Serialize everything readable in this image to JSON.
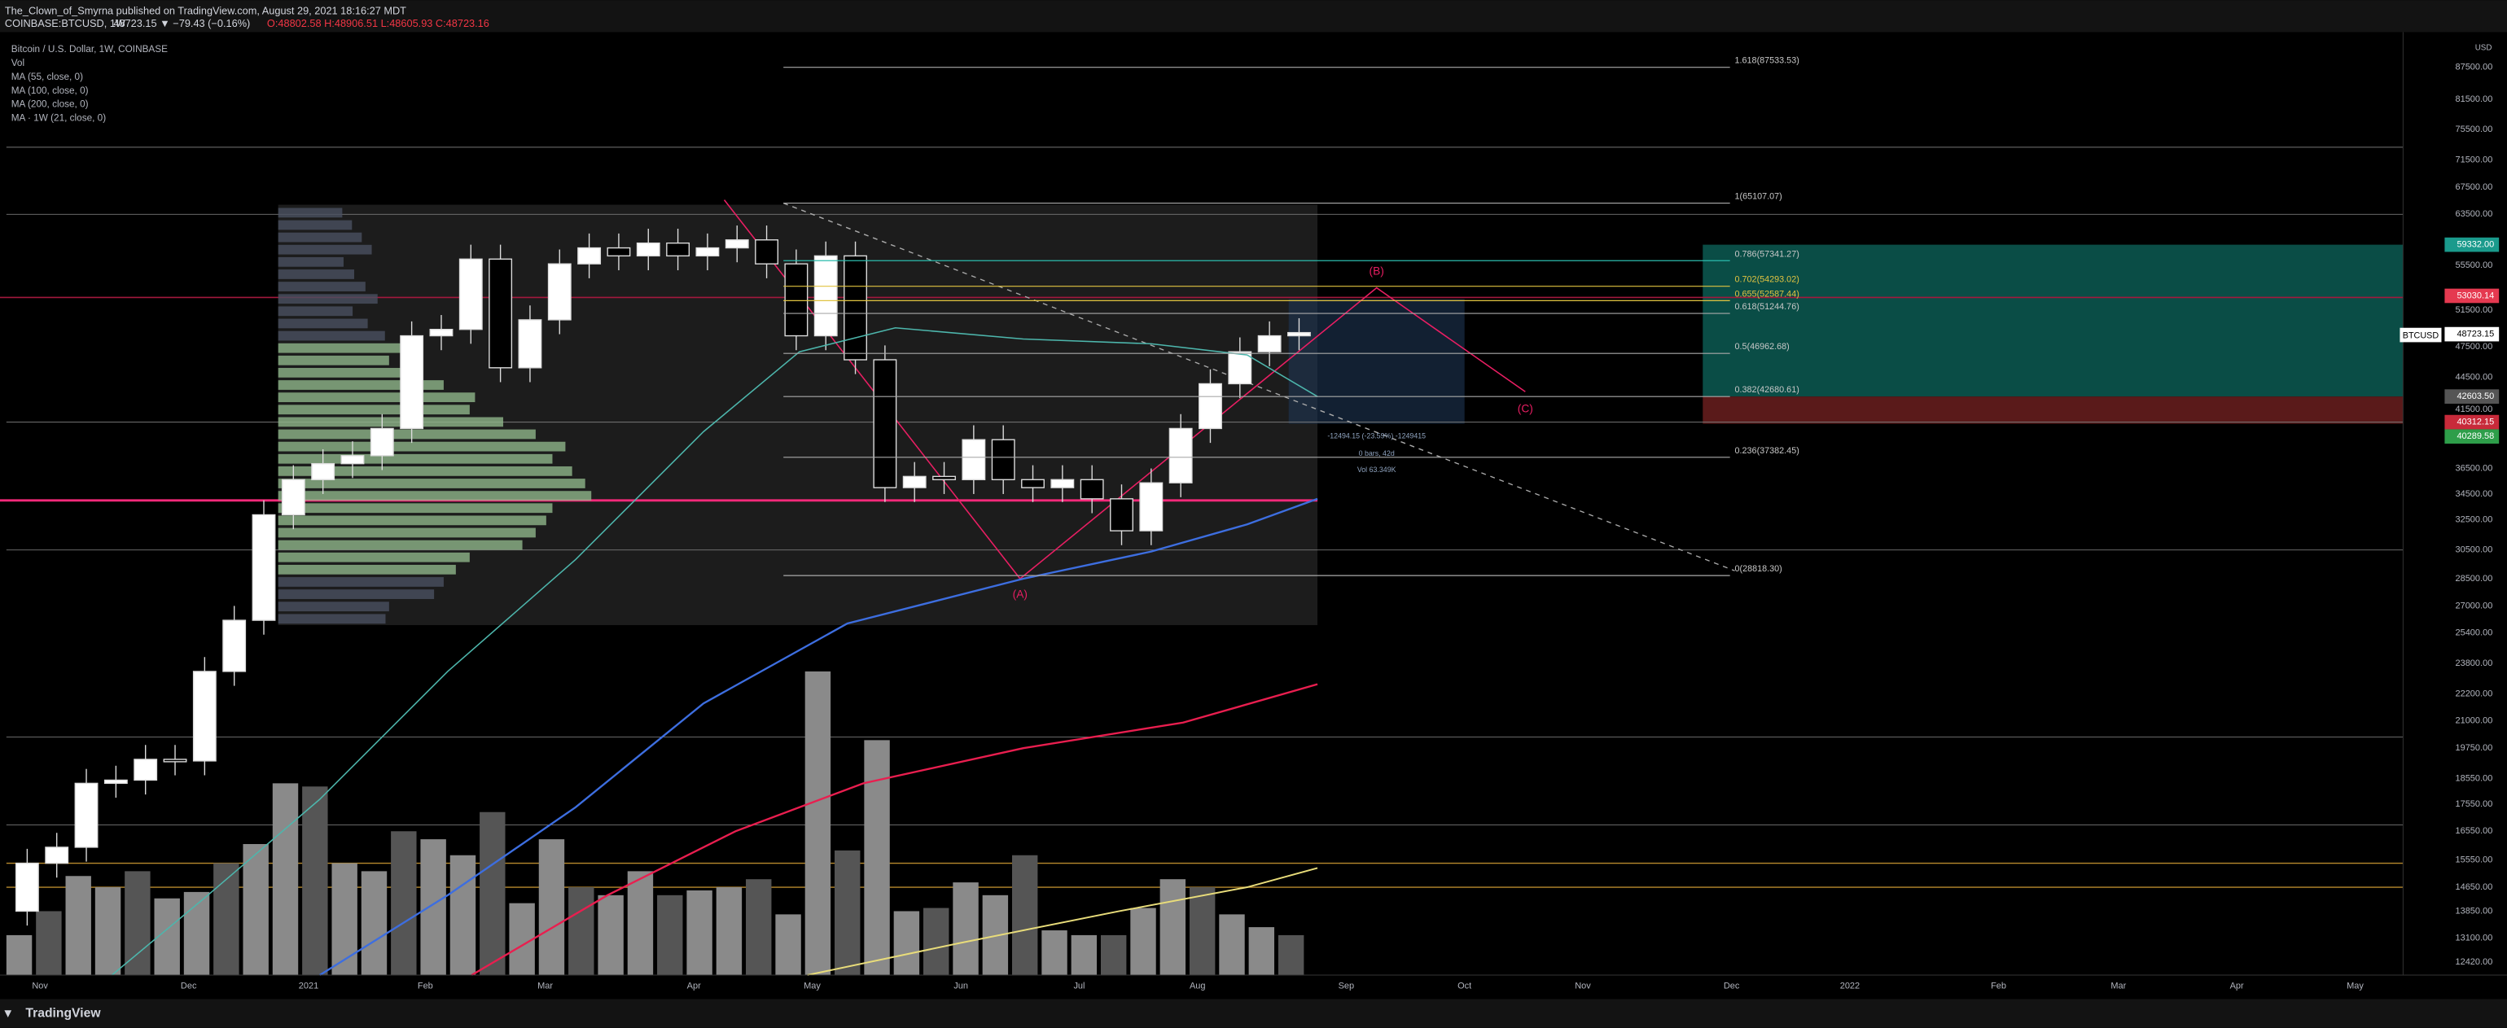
{
  "header": {
    "publisher": "The_Clown_of_Smyrna published on TradingView.com, August 29, 2021 18:16:27 MDT",
    "symbol": "COINBASE:BTCUSD, 1W",
    "last": "48723.15 ▼ −79.43 (−0.16%)",
    "ohlc": "O:48802.58 H:48906.51 L:48605.93 C:48723.16"
  },
  "legend": [
    "Bitcoin / U.S. Dollar, 1W, COINBASE",
    "Vol",
    "MA (55, close, 0)",
    "MA (100, close, 0)",
    "MA (200, close, 0)",
    "MA · 1W (21, close, 0)"
  ],
  "price_axis": {
    "currency": "USD",
    "labels": [
      "87500.00",
      "81500.00",
      "75500.00",
      "71500.00",
      "67500.00",
      "63500.00",
      "55500.00",
      "51500.00",
      "47500.00",
      "44500.00",
      "41500.00",
      "36500.00",
      "34500.00",
      "32500.00",
      "30500.00",
      "28500.00",
      "27000.00",
      "25400.00",
      "23800.00",
      "22200.00",
      "21000.00",
      "19750.00",
      "18550.00",
      "17550.00",
      "16550.00",
      "15550.00",
      "14650.00",
      "13850.00",
      "13100.00",
      "12420.00"
    ]
  },
  "price_badges": [
    "59332.00",
    "53030.14",
    "48723.15",
    "42603.50",
    "40312.15",
    "40289.58"
  ],
  "symbol_tag": "BTCUSD",
  "time_axis": [
    "Nov",
    "Dec",
    "2021",
    "Feb",
    "Mar",
    "Apr",
    "May",
    "Jun",
    "Jul",
    "Aug",
    "Sep",
    "Oct",
    "Nov",
    "Dec",
    "2022",
    "Feb",
    "Mar",
    "Apr",
    "May"
  ],
  "fib_levels": [
    "1.618(87533.53)",
    "1(65107.07)",
    "0.786(57341.27)",
    "0.702(54293.02)",
    "0.655(52587.44)",
    "0.618(51244.76)",
    "0.5(46962.68)",
    "0.382(42680.61)",
    "0.236(37382.45)",
    "0(28818.30)"
  ],
  "waves": [
    "(A)",
    "(B)",
    "(C)"
  ],
  "measure": [
    "-12494.15 (-23.59%) -1249415",
    "0 bars, 42d",
    "Vol 63.349K"
  ],
  "footer": "TradingView"
}
